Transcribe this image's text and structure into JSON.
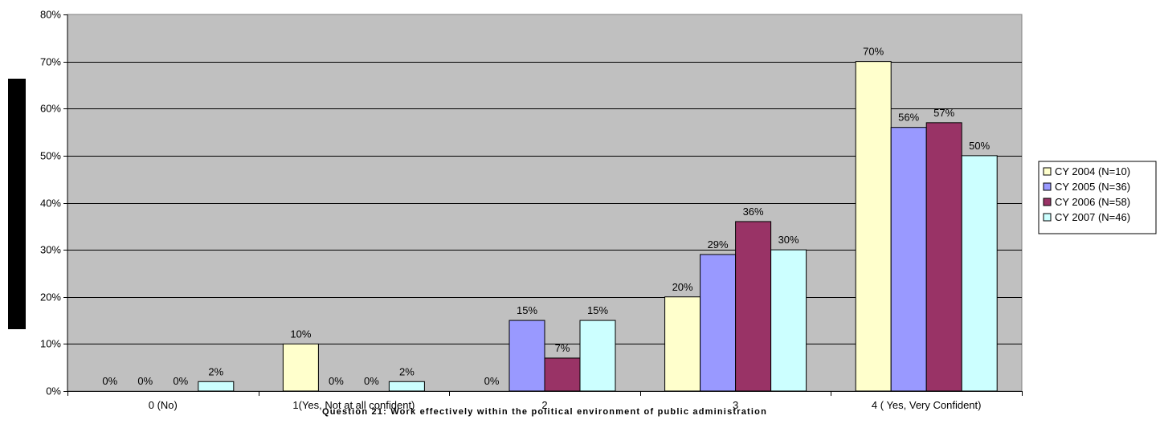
{
  "chart_data": {
    "type": "bar",
    "title": "",
    "xlabel": "Question 21: Work effectively within the political environment of public administration",
    "ylabel": "",
    "categories": [
      "0 (No)",
      "1(Yes, Not at all confident)",
      "2",
      "3",
      "4 ( Yes, Very Confident)"
    ],
    "ylim": [
      0,
      80
    ],
    "yticks": [
      0,
      10,
      20,
      30,
      40,
      50,
      60,
      70,
      80
    ],
    "ytick_labels": [
      "0%",
      "10%",
      "20%",
      "30%",
      "40%",
      "50%",
      "60%",
      "70%",
      "80%"
    ],
    "grid": true,
    "legend_position": "right",
    "plot_background": "#c0c0c0",
    "series": [
      {
        "name": "CY 2004 (N=10)",
        "color": "#ffffcc",
        "values": [
          0,
          10,
          0,
          20,
          70
        ],
        "labels": [
          "0%",
          "10%",
          "0%",
          "20%",
          "70%"
        ]
      },
      {
        "name": "CY 2005 (N=36)",
        "color": "#9999ff",
        "values": [
          0,
          0,
          15,
          29,
          56
        ],
        "labels": [
          "0%",
          "0%",
          "15%",
          "29%",
          "56%"
        ]
      },
      {
        "name": "CY 2006 (N=58)",
        "color": "#993366",
        "values": [
          0,
          0,
          7,
          36,
          57
        ],
        "labels": [
          "0%",
          "0%",
          "7%",
          "36%",
          "57%"
        ]
      },
      {
        "name": "CY 2007 (N=46)",
        "color": "#ccffff",
        "values": [
          2,
          2,
          15,
          30,
          50
        ],
        "labels": [
          "2%",
          "2%",
          "15%",
          "30%",
          "50%"
        ]
      }
    ]
  }
}
